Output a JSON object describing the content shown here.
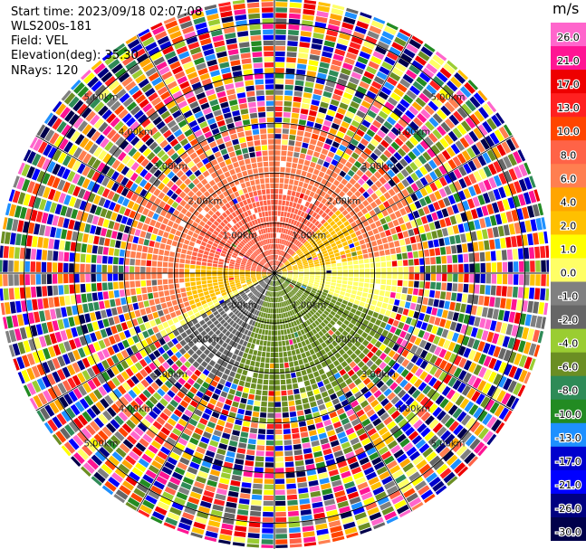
{
  "header": {
    "start_time": "Start time: 2023/09/18 02:07:08",
    "instrument": "WLS200s-181",
    "field": "Field: VEL",
    "elevation": "Elevation(deg): 35.30",
    "nrays": "NRays: 120"
  },
  "chart_data": {
    "type": "heatmap",
    "projection": "polar-ppi",
    "field": "VEL",
    "units": "m/s",
    "nrays": 120,
    "range_ring_labels": [
      "1.00km",
      "2.00km",
      "3.00km",
      "4.00km",
      "5.00km"
    ],
    "range_rings_km": [
      1,
      2,
      3,
      4,
      5
    ],
    "max_range_km": 5.5,
    "ray_lines_deg": [
      0,
      30,
      60,
      90,
      120,
      150,
      180,
      210,
      240,
      270,
      300,
      330
    ],
    "colorbar": {
      "label": "m/s",
      "tick_labels": [
        "26.0",
        "21.0",
        "17.0",
        "13.0",
        "10.0",
        "8.0",
        "6.0",
        "4.0",
        "2.0",
        "1.0",
        "0.0",
        "-1.0",
        "-2.0",
        "-4.0",
        "-6.0",
        "-8.0",
        "-10.0",
        "-13.0",
        "-17.0",
        "-21.0",
        "-26.0",
        "-30.0"
      ],
      "colors": [
        "#ff66cc",
        "#ff1493",
        "#ee0000",
        "#ff2020",
        "#ff4500",
        "#ff6347",
        "#ff7f50",
        "#ffa500",
        "#ffc000",
        "#ffff00",
        "#ffff66",
        "#808080",
        "#666666",
        "#9acd32",
        "#6b8e23",
        "#2e8b57",
        "#228b22",
        "#1e90ff",
        "#0000cd",
        "#0000ff",
        "#000080",
        "#00004a"
      ]
    },
    "near_field_structure": [
      {
        "sector": "north (275-45 deg)",
        "range_km": [
          0,
          1.7
        ],
        "velocity_ms": 8.0
      },
      {
        "sector": "north (245-80 deg)",
        "range_km": [
          1.7,
          3.0
        ],
        "velocity_ms": 6.0
      },
      {
        "sector": "northwest and northeast edges",
        "range_km": [
          0,
          1.8
        ],
        "velocity_ms": 2.0
      },
      {
        "sector": "east to west (80-110 and 240-280 deg)",
        "range_km": [
          0,
          2.6
        ],
        "velocity_ms": 0.0
      },
      {
        "sector": "southwest (200-245 deg)",
        "range_km": [
          0,
          2.2
        ],
        "velocity_ms": -2.0
      },
      {
        "sector": "south (110-200 deg)",
        "range_km": [
          0,
          2.8
        ],
        "velocity_ms": -6.0
      }
    ],
    "far_field": "noise (random velocities across full scale) beyond about 3 km"
  }
}
